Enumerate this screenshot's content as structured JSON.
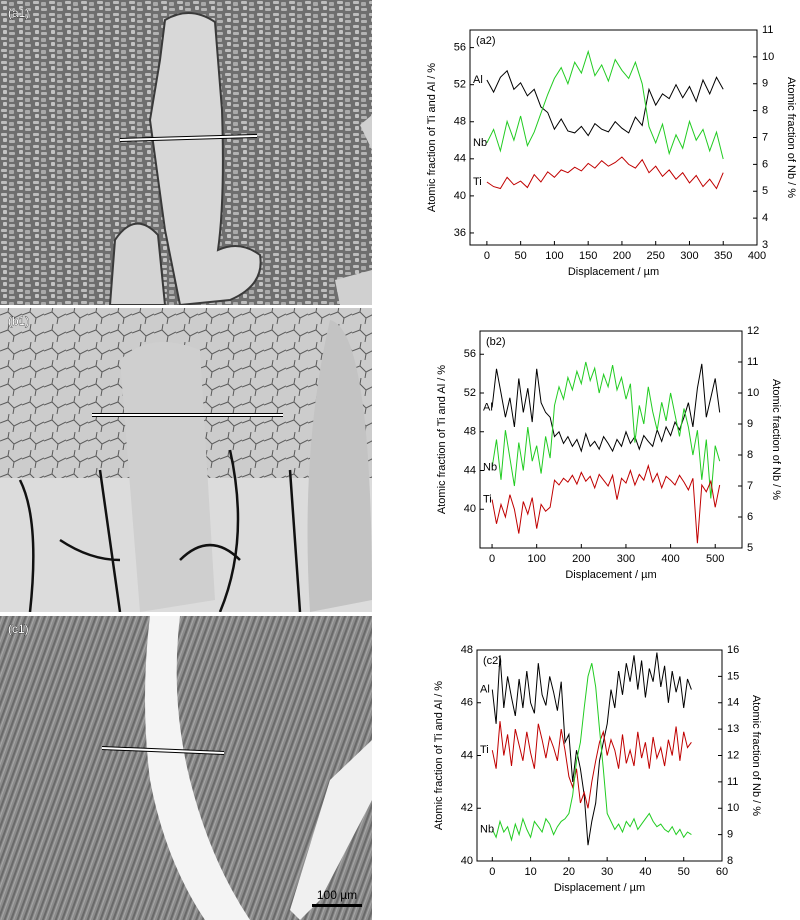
{
  "images": [
    {
      "label": "(a1)"
    },
    {
      "label": "(b1)"
    },
    {
      "label": "(c1)"
    }
  ],
  "scale_bar": "100 µm",
  "chart_data": [
    {
      "type": "line",
      "panel_label": "(a2)",
      "xlabel": "Displacement / µm",
      "ylabel": "Atomic fraction of Ti and Al / %",
      "y2label": "Atomic fraction of Nb / %",
      "x": [
        0,
        10,
        20,
        30,
        40,
        50,
        60,
        70,
        80,
        90,
        100,
        110,
        120,
        130,
        140,
        150,
        160,
        170,
        180,
        190,
        200,
        210,
        220,
        230,
        240,
        250,
        260,
        270,
        280,
        290,
        300,
        310,
        320,
        330,
        340,
        350
      ],
      "xlim": [
        -25,
        400
      ],
      "xticks": [
        0,
        50,
        100,
        150,
        200,
        250,
        300,
        350,
        400
      ],
      "ylim": [
        34.7,
        57.9
      ],
      "yticks": [
        36,
        40,
        44,
        48,
        52,
        56
      ],
      "y2lim": [
        3,
        11
      ],
      "y2ticks": [
        3,
        4,
        5,
        6,
        7,
        8,
        9,
        10,
        11
      ],
      "series": [
        {
          "name": "Al",
          "color": "#000000",
          "values": [
            52.5,
            51.2,
            52.8,
            53.5,
            51.5,
            52.2,
            50.8,
            51.5,
            49.6,
            49.0,
            47.2,
            48.3,
            47.0,
            46.8,
            47.5,
            46.5,
            47.8,
            47.2,
            46.9,
            48.0,
            47.3,
            46.8,
            48.5,
            47.6,
            51.5,
            49.8,
            51.0,
            50.5,
            52.0,
            50.6,
            51.8,
            50.2,
            52.5,
            51.0,
            52.8,
            51.5
          ]
        },
        {
          "name": "Nb",
          "color": "#22cc22",
          "axis": "y2",
          "values": [
            6.8,
            7.3,
            6.5,
            7.6,
            6.9,
            7.8,
            6.7,
            7.2,
            7.9,
            8.6,
            9.2,
            9.6,
            9.0,
            9.8,
            9.4,
            10.2,
            9.3,
            9.7,
            9.1,
            9.9,
            9.5,
            9.2,
            9.8,
            9.0,
            7.4,
            6.8,
            7.5,
            6.4,
            7.1,
            6.6,
            7.6,
            6.9,
            7.3,
            6.5,
            7.2,
            6.2
          ]
        },
        {
          "name": "Ti",
          "color": "#c00000",
          "values": [
            41.5,
            41.0,
            40.8,
            42.0,
            41.2,
            41.6,
            40.9,
            42.3,
            41.5,
            42.6,
            42.0,
            42.8,
            42.5,
            43.1,
            42.7,
            43.5,
            43.0,
            43.8,
            43.2,
            43.6,
            44.2,
            43.4,
            43.0,
            43.9,
            42.5,
            43.2,
            42.1,
            42.8,
            41.8,
            42.5,
            41.4,
            42.2,
            41.0,
            41.8,
            40.8,
            42.5
          ]
        }
      ]
    },
    {
      "type": "line",
      "panel_label": "(b2)",
      "xlabel": "Displacement / µm",
      "ylabel": "Atomic fraction of Ti and Al / %",
      "y2label": "Atomic fraction of Nb / %",
      "x": [
        0,
        10,
        20,
        30,
        40,
        50,
        60,
        70,
        80,
        90,
        100,
        110,
        120,
        130,
        140,
        150,
        160,
        170,
        180,
        190,
        200,
        210,
        220,
        230,
        240,
        250,
        260,
        270,
        280,
        290,
        300,
        310,
        320,
        330,
        340,
        350,
        360,
        370,
        380,
        390,
        400,
        410,
        420,
        430,
        440,
        450,
        460,
        470,
        480,
        490,
        500,
        510
      ],
      "xlim": [
        -27,
        560
      ],
      "xticks": [
        0,
        100,
        200,
        300,
        400,
        500
      ],
      "ylim": [
        36,
        58.4
      ],
      "yticks": [
        40,
        44,
        48,
        52,
        56
      ],
      "y2lim": [
        5,
        12
      ],
      "y2ticks": [
        5,
        6,
        7,
        8,
        9,
        10,
        11,
        12
      ],
      "series": [
        {
          "name": "Al",
          "color": "#000000",
          "values": [
            50.5,
            54.5,
            52.0,
            49.5,
            51.5,
            48.5,
            53.5,
            50.0,
            52.5,
            49.0,
            54.5,
            51.0,
            50.0,
            49.5,
            47.5,
            48.0,
            46.8,
            47.5,
            46.5,
            47.2,
            46.0,
            47.8,
            46.5,
            47.0,
            46.2,
            47.5,
            46.8,
            46.0,
            47.2,
            46.5,
            48.0,
            46.8,
            47.5,
            46.2,
            47.6,
            47.0,
            46.5,
            48.2,
            47.0,
            48.5,
            47.6,
            49.0,
            48.2,
            49.5,
            51.0,
            48.5,
            52.5,
            55.0,
            49.5,
            51.5,
            53.5,
            50.0
          ]
        },
        {
          "name": "Nb",
          "color": "#22cc22",
          "axis": "y2",
          "values": [
            7.6,
            8.5,
            7.2,
            8.8,
            7.9,
            7.0,
            8.4,
            7.5,
            8.9,
            7.8,
            8.3,
            7.4,
            8.6,
            7.9,
            9.6,
            10.2,
            9.8,
            10.5,
            10.1,
            10.7,
            10.3,
            11.0,
            10.4,
            10.8,
            10.0,
            10.6,
            10.2,
            10.9,
            10.1,
            10.5,
            9.8,
            10.3,
            8.4,
            9.6,
            9.0,
            10.2,
            9.4,
            8.8,
            9.7,
            9.1,
            10.0,
            9.3,
            8.6,
            9.5,
            8.9,
            8.0,
            8.8,
            7.2,
            8.5,
            6.6,
            8.3,
            7.8
          ]
        },
        {
          "name": "Ti",
          "color": "#c00000",
          "values": [
            41.0,
            38.5,
            40.5,
            39.2,
            41.5,
            40.0,
            37.5,
            40.8,
            39.5,
            41.2,
            38.0,
            40.5,
            39.8,
            40.2,
            43.0,
            42.5,
            43.2,
            42.8,
            43.5,
            42.6,
            43.8,
            42.9,
            43.4,
            42.2,
            43.6,
            43.0,
            42.4,
            43.5,
            41.0,
            43.2,
            42.7,
            44.0,
            42.5,
            43.6,
            43.0,
            44.5,
            42.8,
            43.7,
            42.2,
            43.4,
            43.0,
            42.5,
            43.5,
            42.8,
            42.0,
            43.2,
            36.5,
            42.5,
            41.8,
            42.9,
            40.2,
            42.5
          ]
        }
      ]
    },
    {
      "type": "line",
      "panel_label": "(c2)",
      "xlabel": "Displacement / µm",
      "ylabel": "Atomic fraction of Ti and Al / %",
      "y2label": "Atomic fraction of Nb / %",
      "x": [
        0,
        1,
        2,
        3,
        4,
        5,
        6,
        7,
        8,
        9,
        10,
        11,
        12,
        13,
        14,
        15,
        16,
        17,
        18,
        19,
        20,
        21,
        22,
        23,
        24,
        25,
        26,
        27,
        28,
        29,
        30,
        31,
        32,
        33,
        34,
        35,
        36,
        37,
        38,
        39,
        40,
        41,
        42,
        43,
        44,
        45,
        46,
        47,
        48,
        49,
        50,
        51,
        52
      ],
      "xlim": [
        -4,
        60
      ],
      "xticks": [
        0,
        10,
        20,
        30,
        40,
        50,
        60
      ],
      "ylim": [
        40,
        48
      ],
      "yticks": [
        40,
        42,
        44,
        46,
        48
      ],
      "y2lim": [
        8,
        16
      ],
      "y2ticks": [
        8,
        9,
        10,
        11,
        12,
        13,
        14,
        15,
        16
      ],
      "series": [
        {
          "name": "Al",
          "color": "#000000",
          "values": [
            46.5,
            45.2,
            47.8,
            45.8,
            47.0,
            46.2,
            45.5,
            46.9,
            45.8,
            47.2,
            46.0,
            45.6,
            47.5,
            46.3,
            45.9,
            47.0,
            46.4,
            45.7,
            46.8,
            44.5,
            44.8,
            43.0,
            44.2,
            43.5,
            42.5,
            40.6,
            41.5,
            42.2,
            43.8,
            44.5,
            45.2,
            46.5,
            45.8,
            47.2,
            46.3,
            47.5,
            46.8,
            47.8,
            46.5,
            47.6,
            46.2,
            47.3,
            46.8,
            47.9,
            46.6,
            47.4,
            46.0,
            47.2,
            46.4,
            47.0,
            45.8,
            46.9,
            46.5
          ]
        },
        {
          "name": "Ti",
          "color": "#c00000",
          "values": [
            44.2,
            43.5,
            45.3,
            44.0,
            44.8,
            43.6,
            45.0,
            44.4,
            43.8,
            44.9,
            44.1,
            43.5,
            45.2,
            44.6,
            43.9,
            44.7,
            44.3,
            43.8,
            45.0,
            44.2,
            43.2,
            42.8,
            43.5,
            42.2,
            42.6,
            42.0,
            43.0,
            43.8,
            44.5,
            44.9,
            44.0,
            44.6,
            44.2,
            43.5,
            44.8,
            43.7,
            44.2,
            43.6,
            44.9,
            43.9,
            44.5,
            43.5,
            44.7,
            43.9,
            44.3,
            43.6,
            44.6,
            44.0,
            45.1,
            43.8,
            44.9,
            44.3,
            44.5
          ]
        },
        {
          "name": "Nb",
          "color": "#22cc22",
          "axis": "y2",
          "values": [
            9.2,
            8.9,
            9.5,
            9.1,
            9.3,
            8.8,
            9.4,
            9.0,
            9.6,
            9.2,
            8.9,
            9.5,
            9.3,
            9.1,
            9.6,
            9.4,
            9.0,
            9.3,
            9.5,
            9.6,
            9.8,
            10.5,
            11.8,
            12.5,
            13.8,
            15.0,
            15.5,
            14.6,
            13.0,
            11.5,
            9.8,
            9.5,
            9.2,
            9.4,
            9.1,
            9.5,
            9.3,
            9.6,
            9.2,
            9.4,
            9.6,
            9.8,
            9.5,
            9.3,
            9.4,
            9.2,
            9.1,
            9.3,
            9.0,
            9.2,
            8.9,
            9.1,
            9.0
          ]
        }
      ]
    }
  ]
}
